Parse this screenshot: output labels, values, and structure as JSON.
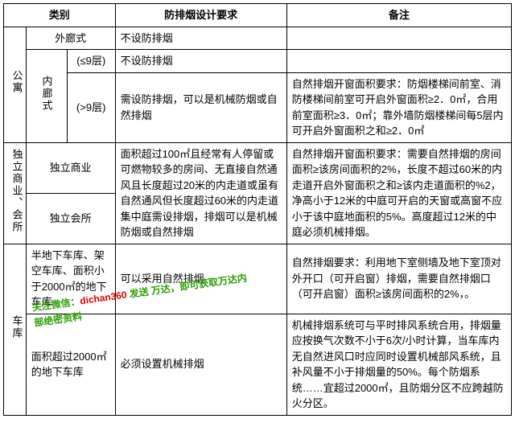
{
  "header": {
    "cat": "类别",
    "req": "防排烟设计要求",
    "note": "备注"
  },
  "r1": {
    "a": "公寓",
    "b": "外廊式",
    "req": "不设防排烟",
    "note": ""
  },
  "r2": {
    "b": "内廊式",
    "c": "(≤9层)",
    "req": "不设防排烟",
    "note": ""
  },
  "r3": {
    "c": "(>9层)",
    "req": "需设防排烟，可以是机械防烟或自然排烟",
    "note": "自然排烟开窗面积要求：防烟楼梯间前室、消防楼梯间前室可开启外窗面积≥2．0㎡，合用前室面积≥3．0㎡；靠外墙防烟楼梯间每5层内可开启外窗面积之和≥2．0㎡"
  },
  "r4": {
    "a": "独立商业、会所",
    "b": "独立商业",
    "req": "面积超过100㎡且经常有人停留或可燃物较多的房间、无直接自然通风且长度超过20米的内走道或虽有自然通风但长度超过60米的内走道集中庭需设排烟，排烟可以是机械防烟或自然排烟",
    "note": "自然排烟开窗面积要求：需要自然排烟的房间面积≥该房间面积的2%，长度不超过60米的内走道开启外窗面积之和≥该内走道面积的%2，净高小于12米的中庭可开启的天窗或高窗不应小于该中庭地面积的5%。高度超过12米的中庭必须机械排烟。"
  },
  "r5": {
    "b": "独立会所"
  },
  "r6": {
    "a": "车库",
    "b": "半地下车库、架空车库、面积小于2000㎡的地下车库",
    "req": "可以采用自然排烟",
    "note": "自然排烟要求：利用地下室侧墙及地下室顶对外开口（可开启窗）排烟，需要自然排烟口（可开启窗）面积≥该房间面积的2%，。"
  },
  "r7": {
    "b": "面积超过2000㎡的地下车库",
    "req": "必须设置机械排烟",
    "note": "机械排烟系统可与平时排风系统合用，排烟量应按换气次数不小于6次/小时计算，当车库内无自然进风口时应同时设置机械部风系统，且补风量不小于排烟量的50%。每个防烟系统……宜超过2000㎡，且防烟分区不应跨越防火分区。"
  },
  "wm": {
    "l1a": "关注微信：",
    "l1b": "dichan360",
    "l1c": " 发送 万达，即可获取万达内",
    "l2": "部绝密资料"
  }
}
